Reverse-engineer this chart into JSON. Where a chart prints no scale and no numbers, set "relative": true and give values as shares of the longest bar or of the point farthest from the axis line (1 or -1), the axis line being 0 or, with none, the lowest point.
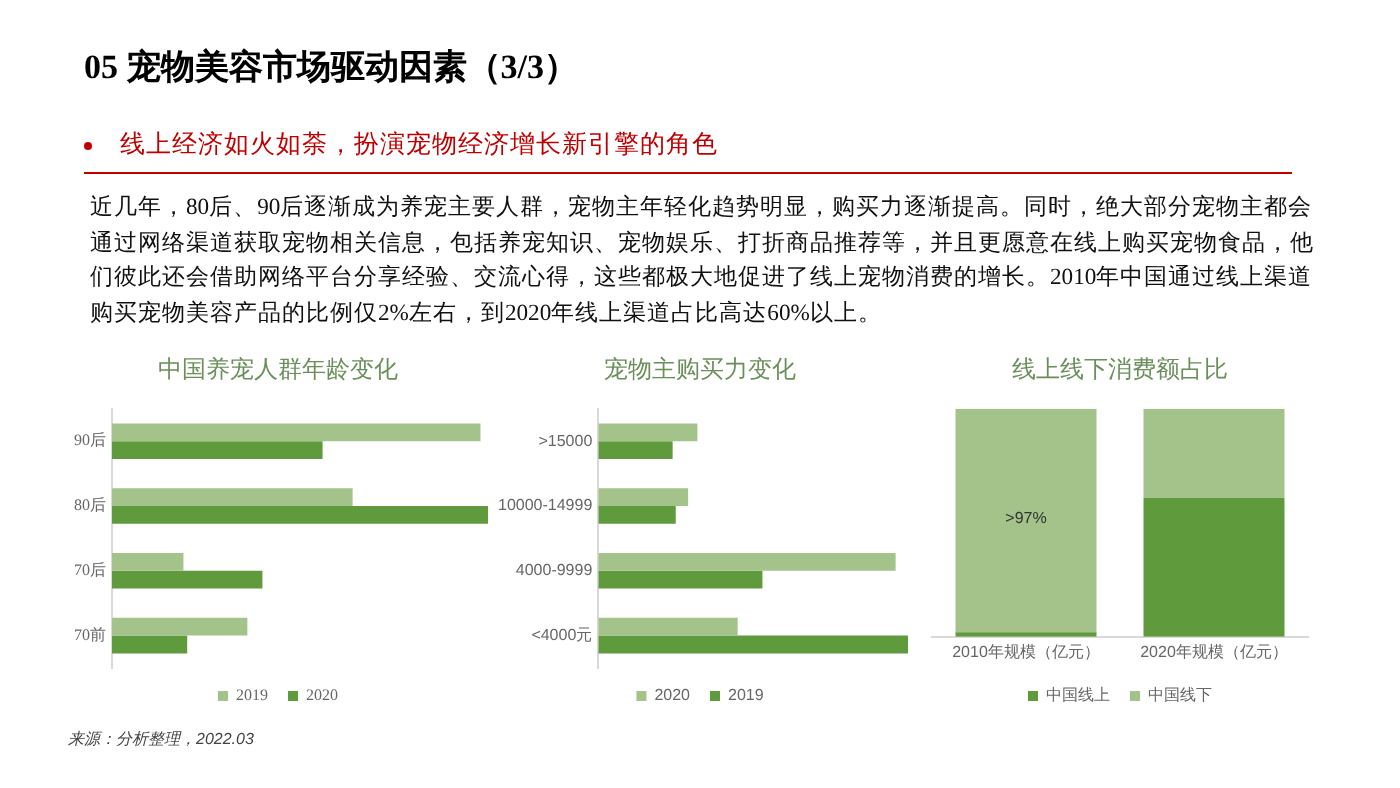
{
  "chart_data": [
    {
      "type": "other",
      "title": "05 宠物美容市场驱动因素（3/3）",
      "subtitle": "线上经济如火如荼，扮演宠物经济增长新引擎的角色",
      "annotations": [
        "近几年，80后、90后逐渐成为养宠主要人群，宠物主年轻化趋势明显，购买力逐渐提高。同时，绝大部分宠物主都会通过网络渠道获取宠物相关信息，包括养宠知识、宠物娱乐、打折商品推荐等，并且更愿意在线上购买宠物食品，他们彼此还会借助网络平台分享经验、交流心得，这些都极大地促进了线上宠物消费的增长。2010年中国通过线上渠道购买宠物美容产品的比例仅2%左右，到2020年线上渠道占比高达60%以上。",
        "来源：分析整理，2022.03"
      ]
    },
    {
      "type": "bar",
      "title": "中国养宠人群年龄变化",
      "orientation": "horizontal",
      "relative": true,
      "legend": "bottom",
      "categories": [
        "90后",
        "80后",
        "70后",
        "70前"
      ],
      "series": [
        {
          "name": "2019",
          "color": "#a3c38a",
          "values": [
            0.98,
            0.64,
            0.19,
            0.36
          ]
        },
        {
          "name": "2020",
          "color": "#5f9a3c",
          "values": [
            0.56,
            1,
            0.4,
            0.2
          ]
        }
      ]
    },
    {
      "type": "bar",
      "title": "宠物主购买力变化",
      "orientation": "horizontal",
      "relative": true,
      "legend": "bottom",
      "categories": [
        ">15000",
        "10000-14999",
        "4000-9999",
        "<4000元"
      ],
      "series": [
        {
          "name": "2020",
          "color": "#a3c38a",
          "values": [
            0.32,
            0.29,
            0.96,
            0.45
          ]
        },
        {
          "name": "2019",
          "color": "#5f9a3c",
          "values": [
            0.24,
            0.25,
            0.53,
            1
          ]
        }
      ]
    },
    {
      "type": "bar",
      "title": "线上线下消费额占比",
      "stacked": true,
      "relative": true,
      "legend": "bottom",
      "categories": [
        "2010年规模（亿元）",
        "2020年规模（亿元）"
      ],
      "series": [
        {
          "name": "中国线上",
          "color": "#5f9a3c",
          "values": [
            0.02,
            0.61
          ]
        },
        {
          "name": "中国线下",
          "color": "#a3c38a",
          "values": [
            0.98,
            0.39
          ]
        }
      ],
      "annotations": [
        ">97%"
      ]
    }
  ]
}
